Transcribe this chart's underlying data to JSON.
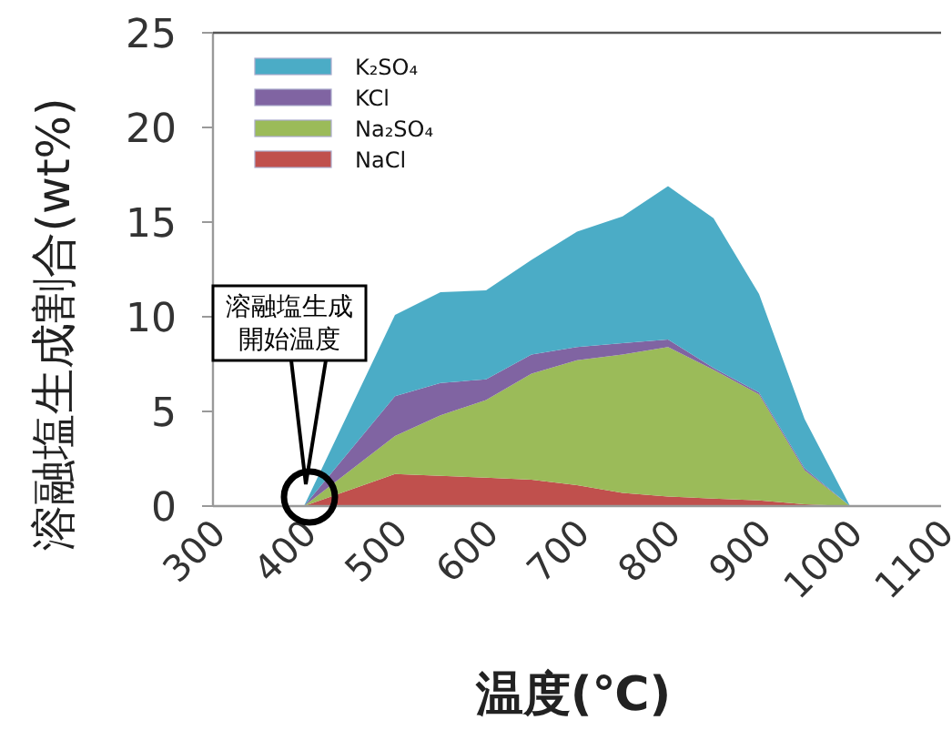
{
  "chart_data": {
    "type": "area",
    "stacked": true,
    "xlabel": "温度(℃)",
    "ylabel": "溶融塩生成割合(wt%)",
    "x": [
      400,
      500,
      550,
      600,
      650,
      700,
      750,
      800,
      850,
      900,
      950,
      1000
    ],
    "series": [
      {
        "name": "NaCl",
        "color": "#c0504d",
        "values": [
          0,
          1.7,
          1.6,
          1.5,
          1.4,
          1.1,
          0.7,
          0.5,
          0.4,
          0.3,
          0.1,
          0
        ]
      },
      {
        "name": "Na₂SO₄",
        "color": "#9bbb59",
        "values": [
          0,
          2.0,
          3.2,
          4.1,
          5.6,
          6.6,
          7.3,
          7.9,
          6.8,
          5.6,
          1.8,
          0
        ]
      },
      {
        "name": "KCl",
        "color": "#8064a2",
        "values": [
          0,
          2.1,
          1.7,
          1.1,
          1.0,
          0.7,
          0.6,
          0.4,
          0.1,
          0.1,
          0.1,
          0
        ]
      },
      {
        "name": "K₂SO₄",
        "color": "#4bacc6",
        "values": [
          0,
          4.3,
          4.8,
          4.7,
          5.0,
          6.1,
          6.7,
          8.1,
          7.9,
          5.2,
          2.6,
          0
        ]
      }
    ],
    "xlim": [
      300,
      1100
    ],
    "xticks": [
      300,
      400,
      500,
      600,
      700,
      800,
      900,
      1000,
      1100
    ],
    "ylim": [
      0,
      25
    ],
    "yticks": [
      0,
      5,
      10,
      15,
      20,
      25
    ],
    "grid": false,
    "legend": "top left",
    "annotations": [
      "溶融塩生成",
      "開始温度"
    ]
  }
}
